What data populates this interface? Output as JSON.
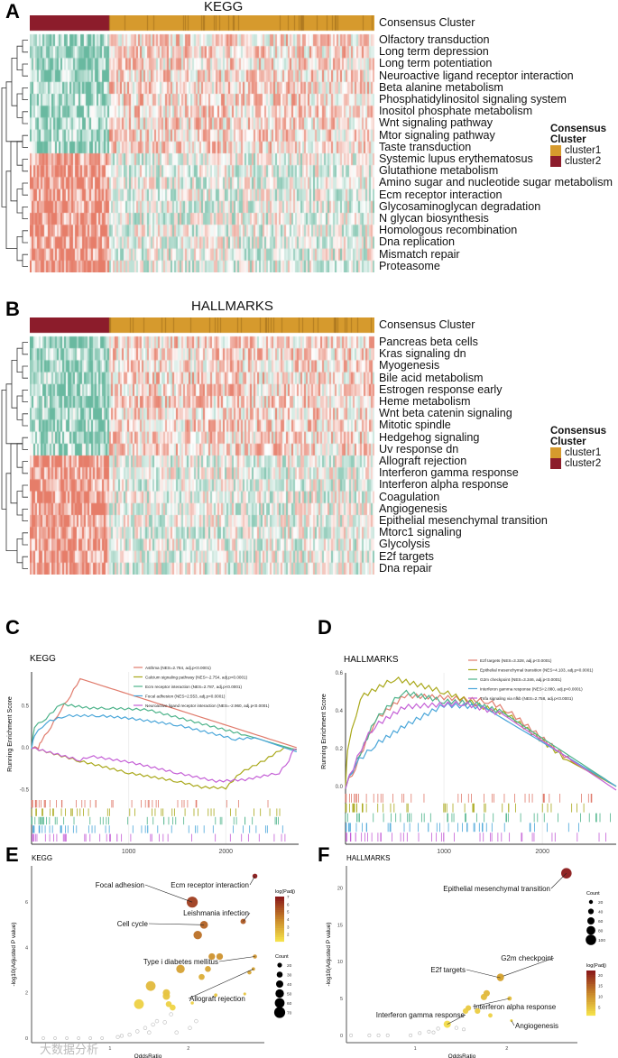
{
  "chart_data": [
    {
      "panel": "A",
      "type": "heatmap",
      "title": "KEGG",
      "annotation_label": "Consensus Cluster",
      "rows": [
        "Olfactory transduction",
        "Long term depression",
        "Long term potentiation",
        "Neuroactive ligand receptor interaction",
        "Beta alanine metabolism",
        "Phosphatidylinositol signaling system",
        "Inositol phosphate metabolism",
        "Wnt signaling pathway",
        "Mtor signaling pathway",
        "Taste transduction",
        "Systemic lupus erythematosus",
        "Glutathione metabolism",
        "Amino sugar and nucleotide sugar metabolism",
        "Ecm receptor interaction",
        "Glycosaminoglycan degradation",
        "N glycan biosynthesis",
        "Homologous recombination",
        "Dna replication",
        "Mismatch repair",
        "Proteasome"
      ],
      "column_groups": [
        {
          "name": "cluster2",
          "fraction": 0.23
        },
        {
          "name": "cluster1",
          "fraction": 0.77
        }
      ],
      "legend": {
        "title": "Consensus Cluster",
        "items": [
          {
            "label": "cluster1",
            "color": "#d69a2d"
          },
          {
            "label": "cluster2",
            "color": "#8c1c2b"
          }
        ]
      },
      "high_in_cluster2_rows_from": 10
    },
    {
      "panel": "B",
      "type": "heatmap",
      "title": "HALLMARKS",
      "annotation_label": "Consensus Cluster",
      "rows": [
        "Pancreas beta cells",
        "Kras signaling dn",
        "Myogenesis",
        "Bile acid metabolism",
        "Estrogen response early",
        "Heme metabolism",
        "Wnt beta catenin signaling",
        "Mitotic spindle",
        "Hedgehog signaling",
        "Uv response dn",
        "Allograft rejection",
        "Interferon gamma response",
        "Interferon alpha response",
        "Coagulation",
        "Angiogenesis",
        "Epithelial mesenchymal transition",
        "Mtorc1 signaling",
        "Glycolysis",
        "E2f targets",
        "Dna repair"
      ],
      "column_groups": [
        {
          "name": "cluster2",
          "fraction": 0.23
        },
        {
          "name": "cluster1",
          "fraction": 0.77
        }
      ],
      "legend": {
        "title": "Consensus Cluster",
        "items": [
          {
            "label": "cluster1",
            "color": "#d69a2d"
          },
          {
            "label": "cluster2",
            "color": "#8c1c2b"
          }
        ]
      },
      "high_in_cluster2_rows_from": 10
    },
    {
      "panel": "C",
      "type": "line",
      "title": "KEGG",
      "ylabel": "Running Enrichment Score",
      "xlabel": "",
      "xlim": [
        0,
        2750
      ],
      "ylim": [
        -0.58,
        0.9
      ],
      "xticks": [
        1000,
        2000
      ],
      "yticks": [
        -0.5,
        0.0,
        0.5
      ],
      "ytick_labels": [
        "-0.5",
        "0.0",
        "0.5"
      ],
      "series": [
        {
          "name": "Asthma (NES=2.784, adj.p<0.0001)",
          "color": "#e07b6c",
          "points": [
            [
              0,
              0
            ],
            [
              70,
              0
            ],
            [
              100,
              0.08
            ],
            [
              200,
              0.25
            ],
            [
              300,
              0.45
            ],
            [
              400,
              0.62
            ],
            [
              500,
              0.82
            ],
            [
              2730,
              0
            ]
          ]
        },
        {
          "name": "Calcium signaling pathway (NES=-2.754, adj.p<0.0001)",
          "color": "#a9a81a",
          "points": [
            [
              0,
              0
            ],
            [
              500,
              -0.16
            ],
            [
              1000,
              -0.3
            ],
            [
              1500,
              -0.4
            ],
            [
              1750,
              -0.47
            ],
            [
              2000,
              -0.48
            ],
            [
              2150,
              -0.3
            ],
            [
              2400,
              -0.15
            ],
            [
              2600,
              0
            ],
            [
              2730,
              -0.02
            ]
          ]
        },
        {
          "name": "Ecm receptor interaction (NES=2.787, adj.p<0.0001)",
          "color": "#4db38a",
          "points": [
            [
              0,
              0
            ],
            [
              30,
              0.25
            ],
            [
              150,
              0.35
            ],
            [
              300,
              0.52
            ],
            [
              600,
              0.47
            ],
            [
              800,
              0.47
            ],
            [
              1200,
              0.45
            ],
            [
              1600,
              0.33
            ],
            [
              2200,
              0.15
            ],
            [
              2730,
              -0.03
            ]
          ]
        },
        {
          "name": "Focal adhesion (NES=2.553, adj.p<0.0001)",
          "color": "#4aa6d9",
          "points": [
            [
              0,
              0
            ],
            [
              30,
              0.15
            ],
            [
              150,
              0.3
            ],
            [
              350,
              0.38
            ],
            [
              700,
              0.38
            ],
            [
              1000,
              0.35
            ],
            [
              1500,
              0.27
            ],
            [
              2100,
              0.1
            ],
            [
              2300,
              0.12
            ],
            [
              2730,
              -0.05
            ]
          ]
        },
        {
          "name": "Neuroactive ligand receptor interaction (NES=-2.960, adj.p<0.0001)",
          "color": "#c45fd6",
          "points": [
            [
              0,
              0
            ],
            [
              500,
              -0.15
            ],
            [
              600,
              -0.1
            ],
            [
              1000,
              -0.17
            ],
            [
              1500,
              -0.3
            ],
            [
              1900,
              -0.4
            ],
            [
              2200,
              -0.38
            ],
            [
              2550,
              -0.3
            ],
            [
              2650,
              -0.15
            ],
            [
              2700,
              -0.02
            ],
            [
              2730,
              -0.02
            ]
          ]
        }
      ]
    },
    {
      "panel": "D",
      "type": "line",
      "title": "HALLMARKS",
      "ylabel": "Running Enrichment Score",
      "xlabel": "",
      "xlim": [
        0,
        2750
      ],
      "ylim": [
        -0.02,
        0.6
      ],
      "xticks": [
        1000,
        2000
      ],
      "yticks": [
        0.0,
        0.2,
        0.4,
        0.6
      ],
      "ytick_labels": [
        "0.0",
        "0.2",
        "0.4",
        "0.6"
      ],
      "series": [
        {
          "name": "E2f targets (NES=3.328, adj.p<0.0001)",
          "color": "#e07b6c",
          "points": [
            [
              0,
              0
            ],
            [
              100,
              0.1
            ],
            [
              300,
              0.35
            ],
            [
              600,
              0.48
            ],
            [
              1000,
              0.47
            ],
            [
              1450,
              0.45
            ],
            [
              1650,
              0.4
            ],
            [
              2300,
              0.13
            ],
            [
              2750,
              0
            ]
          ]
        },
        {
          "name": "Epithelial mesenchymal transition (NES=4.103, adj.p<0.0001)",
          "color": "#a9a81a",
          "points": [
            [
              0,
              0
            ],
            [
              20,
              0.2
            ],
            [
              150,
              0.47
            ],
            [
              500,
              0.57
            ],
            [
              1000,
              0.5
            ],
            [
              1400,
              0.42
            ],
            [
              1650,
              0.38
            ],
            [
              2250,
              0.14
            ],
            [
              2750,
              0
            ]
          ]
        },
        {
          "name": "G2m checkpoint (NES=3.346, adj.p<0.0001)",
          "color": "#4db38a",
          "points": [
            [
              0,
              0
            ],
            [
              300,
              0.35
            ],
            [
              580,
              0.5
            ],
            [
              1000,
              0.45
            ],
            [
              1300,
              0.44
            ],
            [
              1600,
              0.39
            ],
            [
              2750,
              0
            ]
          ]
        },
        {
          "name": "Interferon gamma response (NES=2.880, adj.p<0.0001)",
          "color": "#4aa6d9",
          "points": [
            [
              0,
              0
            ],
            [
              100,
              0.12
            ],
            [
              300,
              0.22
            ],
            [
              600,
              0.32
            ],
            [
              1000,
              0.43
            ],
            [
              1400,
              0.42
            ],
            [
              2750,
              0
            ]
          ]
        },
        {
          "name": "Tnfa signaling via nfkb (NES=2.758, adj.p<0.0001)",
          "color": "#c45fd6",
          "points": [
            [
              0,
              0
            ],
            [
              200,
              0.25
            ],
            [
              300,
              0.32
            ],
            [
              600,
              0.42
            ],
            [
              1200,
              0.44
            ],
            [
              1600,
              0.38
            ],
            [
              2750,
              -0.02
            ]
          ]
        }
      ]
    },
    {
      "panel": "E",
      "type": "scatter",
      "title": "KEGG",
      "xlabel": "OddsRatio",
      "ylabel": "-log10(Adjusted P value)",
      "xlim": [
        0,
        2.97
      ],
      "ylim": [
        -0.2,
        7.6
      ],
      "xticks": [
        1,
        2
      ],
      "yticks": [
        0,
        2,
        4,
        6
      ],
      "color_legend": {
        "title": "log(Padj)",
        "ticks": [
          2,
          3,
          4,
          5,
          6,
          7
        ],
        "range": [
          1,
          7
        ]
      },
      "size_legend": {
        "title": "Count",
        "values": [
          20,
          30,
          40,
          50,
          60,
          70
        ]
      },
      "points": [
        {
          "x": 2.85,
          "y": 7.15,
          "count": 22,
          "c": 7.1,
          "label": "Ecm receptor interaction"
        },
        {
          "x": 2.05,
          "y": 6.0,
          "count": 70,
          "c": 6.0,
          "label": "Focal adhesion"
        },
        {
          "x": 2.7,
          "y": 5.15,
          "count": 25,
          "c": 5.2,
          "label": "Leishmania infection"
        },
        {
          "x": 2.2,
          "y": 5.0,
          "count": 45,
          "c": 5.0,
          "label": "Cell cycle"
        },
        {
          "x": 2.12,
          "y": 4.55,
          "count": 50,
          "c": 4.6
        },
        {
          "x": 2.85,
          "y": 3.6,
          "count": 15,
          "c": 3.6,
          "label": "Type i diabetes mellitus"
        },
        {
          "x": 2.3,
          "y": 3.6,
          "count": 35,
          "c": 3.6
        },
        {
          "x": 2.4,
          "y": 3.6,
          "count": 35,
          "c": 3.6
        },
        {
          "x": 1.9,
          "y": 3.05,
          "count": 50,
          "c": 3.1
        },
        {
          "x": 2.25,
          "y": 3.05,
          "count": 30,
          "c": 3.0
        },
        {
          "x": 2.78,
          "y": 2.9,
          "count": 15,
          "c": 2.9
        },
        {
          "x": 2.83,
          "y": 3.05,
          "count": 10,
          "c": 3.0,
          "label": "Allograft rejection"
        },
        {
          "x": 2.17,
          "y": 2.7,
          "count": 30,
          "c": 2.7
        },
        {
          "x": 1.52,
          "y": 2.3,
          "count": 60,
          "c": 2.3
        },
        {
          "x": 1.72,
          "y": 2.0,
          "count": 40,
          "c": 2.0
        },
        {
          "x": 1.72,
          "y": 1.85,
          "count": 40,
          "c": 1.9
        },
        {
          "x": 1.37,
          "y": 1.5,
          "count": 60,
          "c": 1.5
        },
        {
          "x": 1.75,
          "y": 1.5,
          "count": 30,
          "c": 1.5
        },
        {
          "x": 1.8,
          "y": 1.35,
          "count": 30,
          "c": 1.4
        },
        {
          "x": 2.35,
          "y": 1.9,
          "count": 10,
          "c": 1.9
        },
        {
          "x": 2.72,
          "y": 1.95,
          "count": 5,
          "c": 1.9
        },
        {
          "x": 2.05,
          "y": 1.55,
          "count": 8,
          "c": 1.5
        },
        {
          "x": 0.15,
          "y": 0.0,
          "count": 5
        },
        {
          "x": 0.3,
          "y": 0.0,
          "count": 5
        },
        {
          "x": 0.45,
          "y": 0.0,
          "count": 5
        },
        {
          "x": 0.6,
          "y": 0.0,
          "count": 5
        },
        {
          "x": 0.75,
          "y": 0.0,
          "count": 5
        },
        {
          "x": 0.9,
          "y": 0.0,
          "count": 5
        },
        {
          "x": 1.1,
          "y": 0.05,
          "count": 8
        },
        {
          "x": 1.15,
          "y": 0.1,
          "count": 8
        },
        {
          "x": 1.25,
          "y": 0.15,
          "count": 8
        },
        {
          "x": 1.35,
          "y": 0.3,
          "count": 10
        },
        {
          "x": 1.45,
          "y": 0.45,
          "count": 10
        },
        {
          "x": 1.55,
          "y": 0.6,
          "count": 10
        },
        {
          "x": 1.6,
          "y": 0.75,
          "count": 10
        },
        {
          "x": 1.7,
          "y": 0.7,
          "count": 10
        },
        {
          "x": 1.5,
          "y": 0.25,
          "count": 10
        },
        {
          "x": 1.85,
          "y": 0.25,
          "count": 10
        },
        {
          "x": 2.02,
          "y": 0.45,
          "count": 10
        },
        {
          "x": 2.1,
          "y": 0.75,
          "count": 10
        },
        {
          "x": 1.78,
          "y": 1.05,
          "count": 10
        }
      ]
    },
    {
      "panel": "F",
      "type": "scatter",
      "title": "HALLMARKS",
      "xlabel": "OddsRatio",
      "ylabel": "-log10(Adjusted P value)",
      "xlim": [
        0.25,
        2.77
      ],
      "ylim": [
        -1,
        23
      ],
      "xticks": [
        1,
        2
      ],
      "yticks": [
        0,
        5,
        10,
        15,
        20
      ],
      "color_legend": {
        "title": "log(Padj)",
        "ticks": [
          5,
          10,
          15,
          20
        ],
        "range": [
          1,
          22
        ]
      },
      "size_legend": {
        "title": "Count",
        "values": [
          20,
          40,
          60,
          80,
          100
        ]
      },
      "points": [
        {
          "x": 2.65,
          "y": 22,
          "count": 100,
          "c": 22,
          "label": "Epithelial mesenchymal transition"
        },
        {
          "x": 1.93,
          "y": 7.9,
          "count": 60,
          "c": 8,
          "label": "G2m checkpoint"
        },
        {
          "x": 1.93,
          "y": 7.8,
          "count": 55,
          "c": 7.8,
          "label": "E2f targets"
        },
        {
          "x": 1.78,
          "y": 5.7,
          "count": 50,
          "c": 5.7
        },
        {
          "x": 1.75,
          "y": 5.2,
          "count": 50,
          "c": 5.2
        },
        {
          "x": 2.03,
          "y": 5.0,
          "count": 25,
          "c": 5.0,
          "label": "Interferon alpha response"
        },
        {
          "x": 1.58,
          "y": 3.7,
          "count": 40,
          "c": 3.7
        },
        {
          "x": 1.55,
          "y": 3.3,
          "count": 40,
          "c": 3.3
        },
        {
          "x": 1.68,
          "y": 3.3,
          "count": 40,
          "c": 3.3
        },
        {
          "x": 1.82,
          "y": 2.7,
          "count": 25,
          "c": 2.7
        },
        {
          "x": 2.05,
          "y": 2.0,
          "count": 5,
          "c": 2.0,
          "label": "Angiogenesis"
        },
        {
          "x": 1.35,
          "y": 1.5,
          "count": 60,
          "c": 1.5,
          "label": "Interferon gamma response"
        },
        {
          "x": 0.3,
          "y": 0,
          "count": 8
        },
        {
          "x": 0.5,
          "y": 0,
          "count": 8
        },
        {
          "x": 0.6,
          "y": 0,
          "count": 8
        },
        {
          "x": 0.7,
          "y": 0,
          "count": 8
        },
        {
          "x": 0.95,
          "y": 0,
          "count": 8
        },
        {
          "x": 1.05,
          "y": 0.3,
          "count": 8
        },
        {
          "x": 1.15,
          "y": 0.5,
          "count": 8
        },
        {
          "x": 1.2,
          "y": 0.4,
          "count": 8
        },
        {
          "x": 1.25,
          "y": 0.9,
          "count": 10
        },
        {
          "x": 1.45,
          "y": 1.0,
          "count": 12
        },
        {
          "x": 1.53,
          "y": 0.8,
          "count": 8
        }
      ]
    }
  ],
  "watermark": "大数据分析"
}
